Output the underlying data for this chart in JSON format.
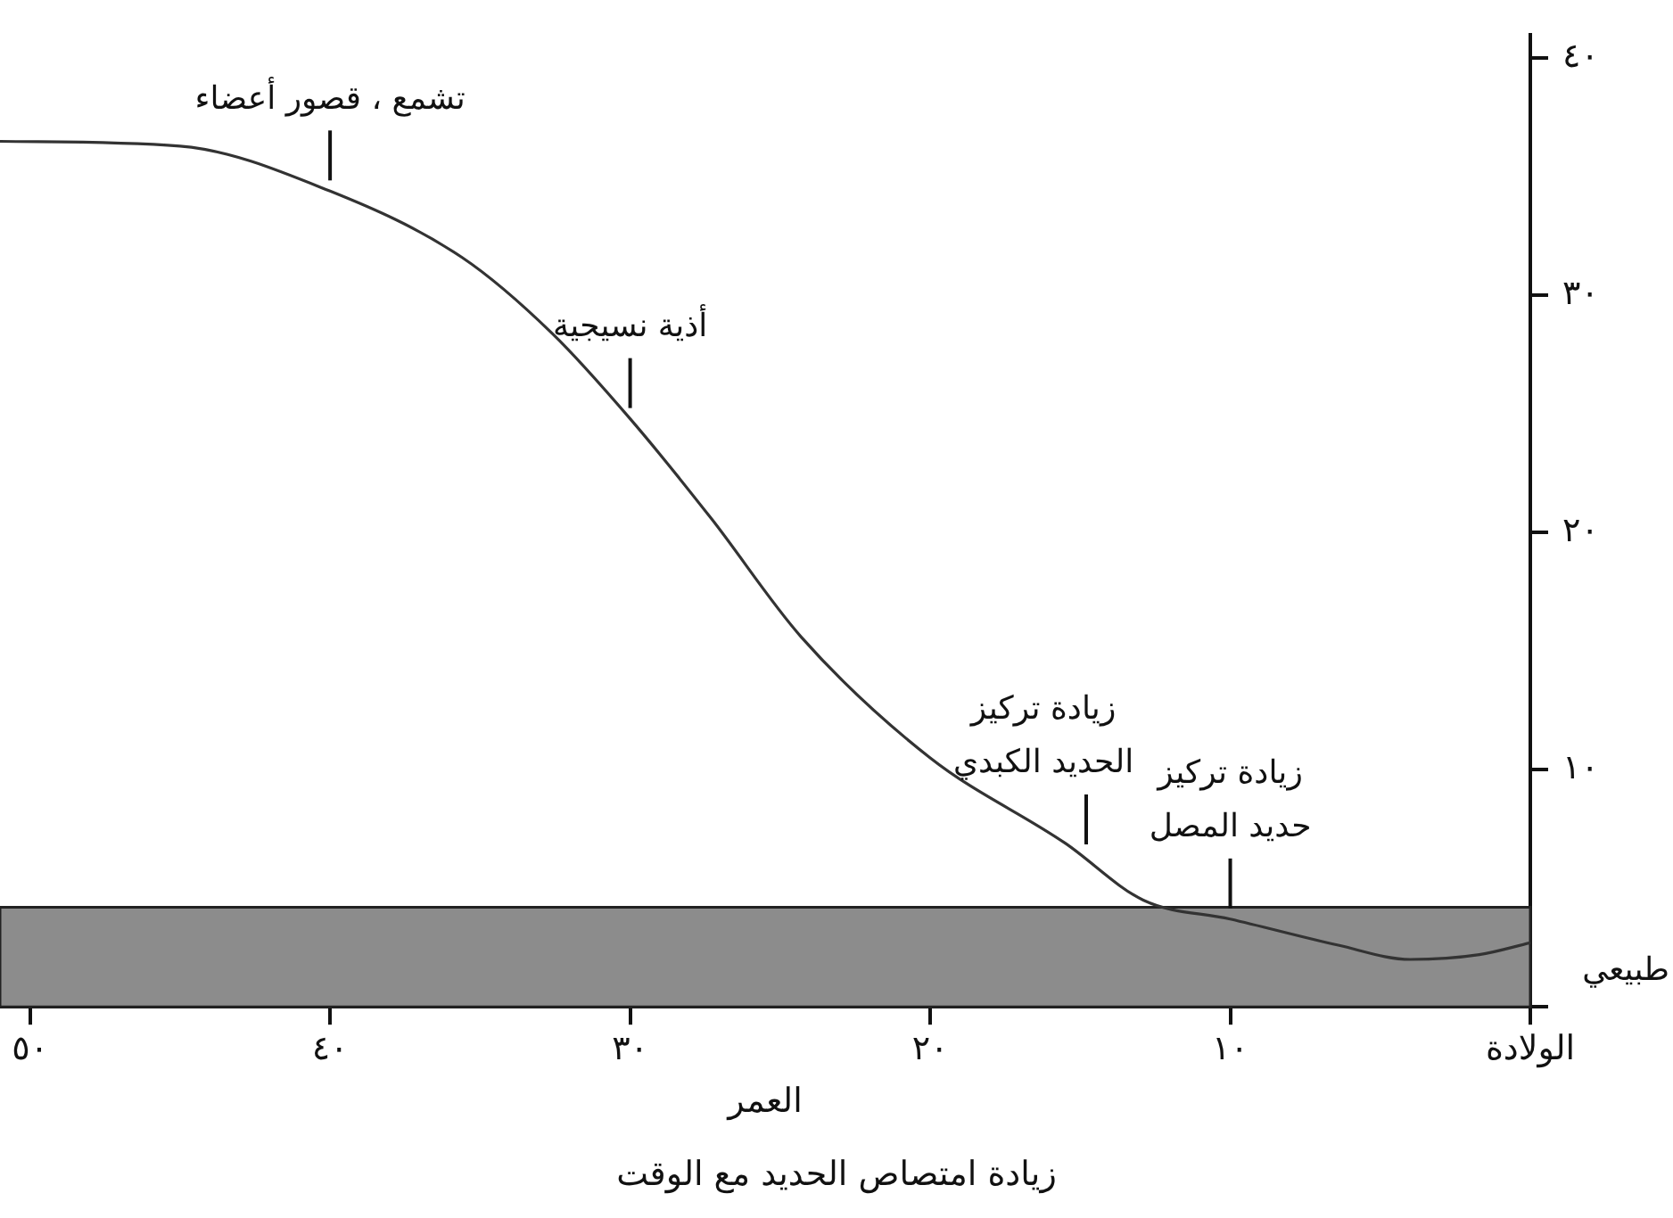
{
  "chart_data": {
    "type": "line",
    "title": "زيادة امتصاص الحديد مع الوقت",
    "xlabel": "العمر",
    "x": [
      51,
      45,
      40,
      35.6,
      32.6,
      30,
      27.3,
      24.3,
      20,
      15.5,
      12.9,
      10,
      6.4,
      4,
      1.7,
      0
    ],
    "values": [
      36.5,
      36.3,
      34.4,
      31.6,
      28.4,
      24.8,
      20.6,
      15.6,
      10.5,
      6.9,
      4.5,
      3.7,
      2.6,
      2,
      2.2,
      2.7
    ],
    "color": "#333333",
    "xlim": [
      51,
      0
    ],
    "xticks": [
      {
        "value": 50,
        "label": "٥٠"
      },
      {
        "value": 40,
        "label": "٤٠"
      },
      {
        "value": 30,
        "label": "٣٠"
      },
      {
        "value": 20,
        "label": "٢٠"
      },
      {
        "value": 10,
        "label": "١٠"
      },
      {
        "value": 0,
        "label": "الولادة"
      }
    ],
    "ylim": [
      0,
      41
    ],
    "yticks": [
      {
        "value": 0,
        "label": null
      },
      {
        "value": 10,
        "label": "١٠"
      },
      {
        "value": 20,
        "label": "٢٠"
      },
      {
        "value": 30,
        "label": "٣٠"
      },
      {
        "value": 40,
        "label": "٤٠"
      }
    ],
    "bands": [
      {
        "axis": "y",
        "from": 0,
        "to": 4.2,
        "label": "طبيعي",
        "color": "#8c8c8c"
      }
    ],
    "annotations": [
      {
        "text": "تشمع ، قصور أعضاء",
        "x": 40,
        "y": 34.4
      },
      {
        "text": "أذية نسيجية",
        "x": 30,
        "y": 24.8
      },
      {
        "text": "زيادة تركيز\nالحديد الكبدي",
        "x": 14.8,
        "y": 6.4
      },
      {
        "text": "زيادة تركيز\nحديد المصل",
        "x": 10,
        "y": 3.7
      }
    ],
    "grid": false,
    "legend": false,
    "marker": "none",
    "line_style": "solid"
  }
}
